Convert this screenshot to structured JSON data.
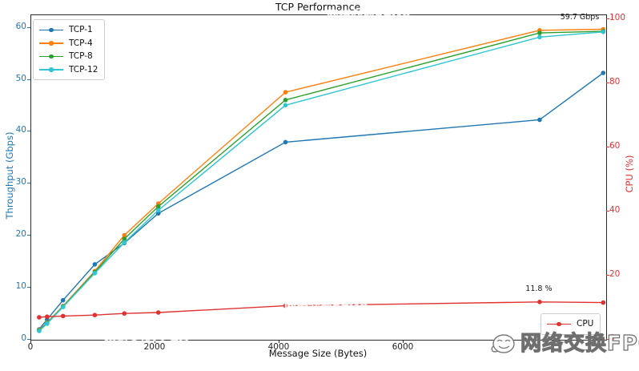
{
  "title": "TCP Performance",
  "chart_data": {
    "type": "line",
    "title": "TCP Performance",
    "xlabel": "Message Size (Bytes)",
    "ylabel_left": "Throughput (Gbps)",
    "ylabel_right": "CPU (%)",
    "x": [
      128,
      256,
      512,
      1024,
      1500,
      2048,
      4096,
      8192,
      9216
    ],
    "series": [
      {
        "name": "TCP-1",
        "axis": "left",
        "color": "#1f77b4",
        "values": [
          2.0,
          3.9,
          7.6,
          14.5,
          18.6,
          24.3,
          38.0,
          42.3,
          51.3
        ]
      },
      {
        "name": "TCP-4",
        "axis": "left",
        "color": "#ff7f0e",
        "values": [
          1.9,
          3.3,
          6.5,
          13.2,
          20.1,
          26.2,
          47.6,
          59.5,
          59.7
        ]
      },
      {
        "name": "TCP-8",
        "axis": "left",
        "color": "#2ca02c",
        "values": [
          1.8,
          3.2,
          6.4,
          13.0,
          19.4,
          25.6,
          46.1,
          59.0,
          59.3
        ]
      },
      {
        "name": "TCP-12",
        "axis": "left",
        "color": "#2fc5d2",
        "values": [
          1.7,
          3.1,
          6.3,
          12.8,
          18.7,
          24.9,
          45.1,
          58.2,
          59.2
        ]
      },
      {
        "name": "CPU",
        "axis": "right",
        "color": "#e03131",
        "values": [
          7.0,
          7.2,
          7.4,
          7.7,
          8.2,
          8.5,
          10.6,
          11.8,
          11.6
        ]
      }
    ],
    "xlim": [
      0,
      9264
    ],
    "ylim_left": [
      0,
      62.4
    ],
    "ylim_right": [
      0,
      101.25
    ],
    "xticks": [
      0,
      2000,
      4000,
      6000
    ],
    "yticks_left": [
      0,
      10,
      20,
      30,
      40,
      50,
      60
    ],
    "yticks_right": [
      0,
      20,
      40,
      60,
      80,
      100
    ],
    "legend_position_left": "upper left",
    "legend_position_right": "lower right",
    "grid": false,
    "annotations": [
      {
        "text": "59.7 Gbps",
        "x": 9216,
        "y": 59.7,
        "axis": "left",
        "ha": "right"
      },
      {
        "text": "11.8 %",
        "x": 8192,
        "y": 11.8,
        "axis": "right",
        "ha": "center"
      }
    ]
  },
  "watermark": {
    "text": "网络交换FPGA"
  },
  "colors": {
    "left_axis": "#1f77b4",
    "right_axis": "#e03131",
    "tcp1": "#1f77b4",
    "tcp4": "#ff7f0e",
    "tcp8": "#2ca02c",
    "tcp12": "#2fc5d2",
    "cpu": "#e03131"
  }
}
